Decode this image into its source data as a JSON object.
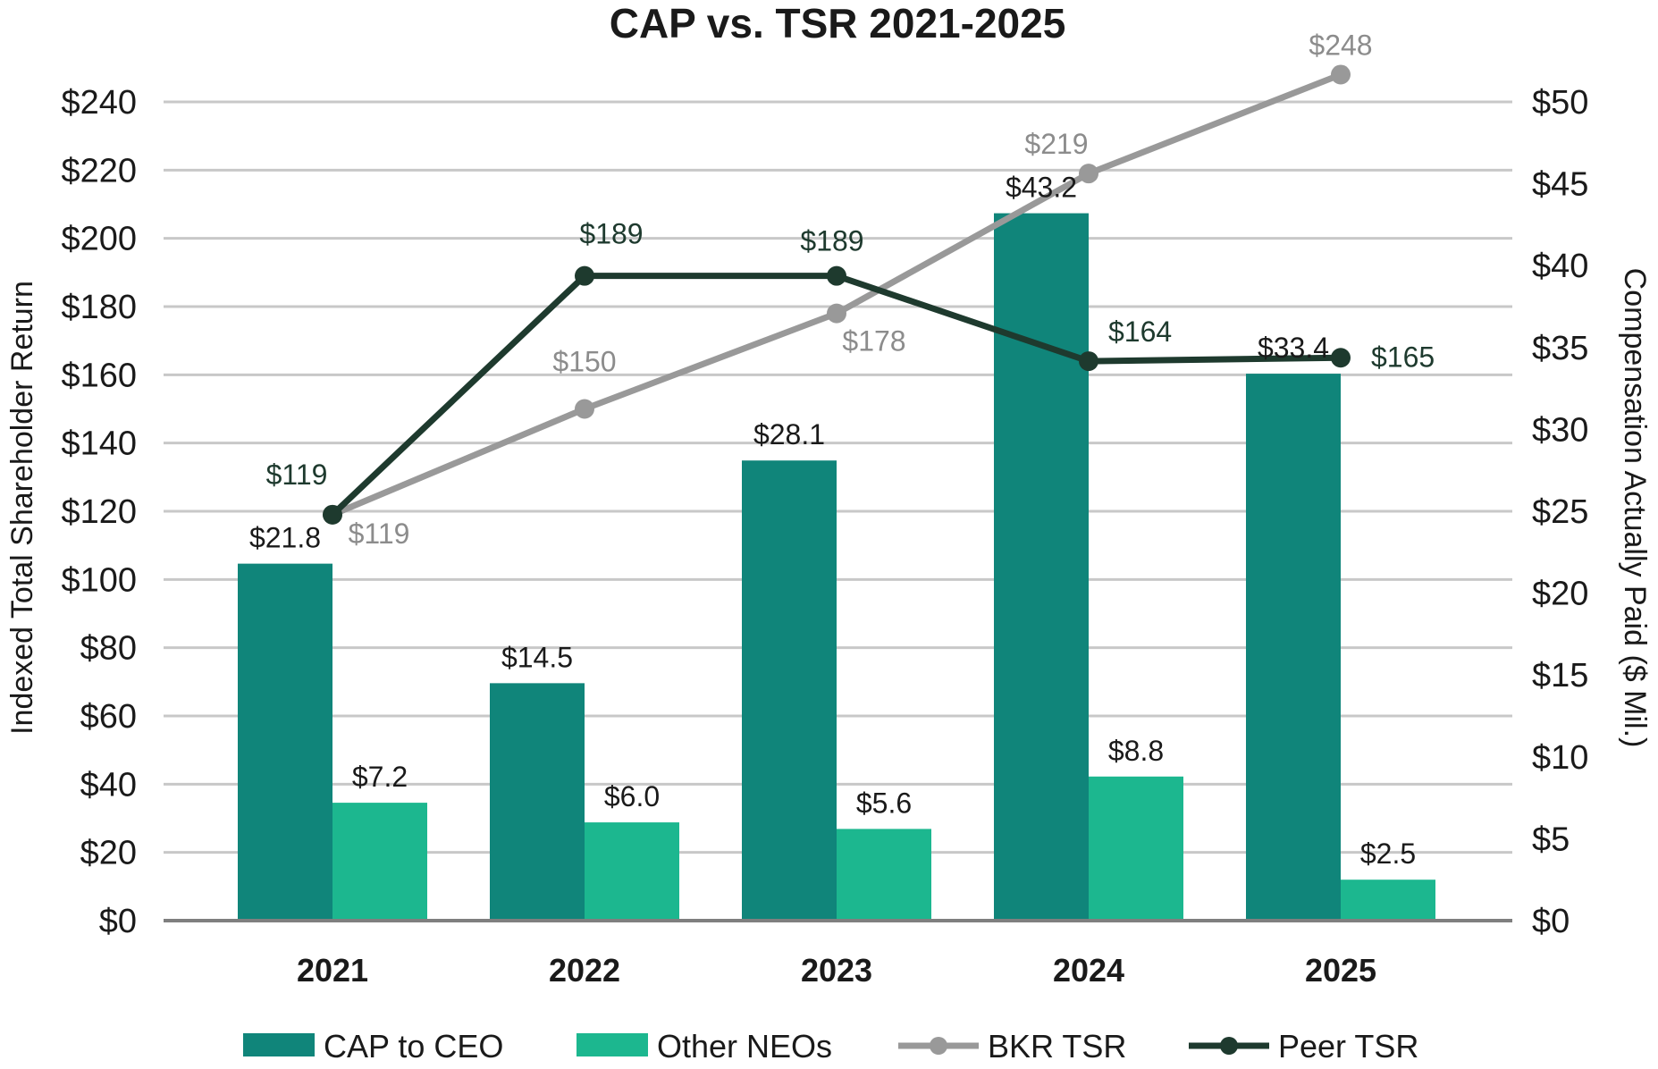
{
  "chart_data": {
    "type": "bar",
    "title": "CAP vs. TSR 2021-2025",
    "categories": [
      "2021",
      "2022",
      "2023",
      "2024",
      "2025"
    ],
    "y_left": {
      "label": "Indexed Total Shareholder Return",
      "range": [
        0,
        240
      ],
      "ticks": [
        0,
        20,
        40,
        60,
        80,
        100,
        120,
        140,
        160,
        180,
        200,
        220,
        240
      ],
      "tick_labels": [
        "$0",
        "$20",
        "$40",
        "$60",
        "$80",
        "$100",
        "$120",
        "$140",
        "$160",
        "$180",
        "$200",
        "$220",
        "$240"
      ]
    },
    "y_right": {
      "label": "Compensation Actually Paid ($ Mil.)",
      "range": [
        0,
        50
      ],
      "ticks": [
        0,
        5,
        10,
        15,
        20,
        25,
        30,
        35,
        40,
        45,
        50
      ],
      "tick_labels": [
        "$0",
        "$5",
        "$10",
        "$15",
        "$20",
        "$25",
        "$30",
        "$35",
        "$40",
        "$45",
        "$50"
      ]
    },
    "grid": true,
    "legend_position": "bottom",
    "series": [
      {
        "name": "CAP to CEO",
        "type": "bar",
        "axis": "right",
        "color": "#10857a",
        "values": [
          21.8,
          14.5,
          28.1,
          43.2,
          33.4
        ],
        "labels": [
          "$21.8",
          "$14.5",
          "$28.1",
          "$43.2",
          "$33.4"
        ]
      },
      {
        "name": "Other NEOs",
        "type": "bar",
        "axis": "right",
        "color": "#1cb78f",
        "values": [
          7.2,
          6.0,
          5.6,
          8.8,
          2.5
        ],
        "labels": [
          "$7.2",
          "$6.0",
          "$5.6",
          "$8.8",
          "$2.5"
        ]
      },
      {
        "name": "BKR TSR",
        "type": "line",
        "axis": "left",
        "color": "#999999",
        "label_color": "#8c8c8c",
        "values": [
          119,
          150,
          178,
          219,
          248
        ],
        "labels": [
          "$119",
          "$150",
          "$178",
          "$219",
          "$248"
        ]
      },
      {
        "name": "Peer TSR",
        "type": "line",
        "axis": "left",
        "color": "#1e3a2e",
        "label_color": "#1e3a2e",
        "values": [
          119,
          189,
          189,
          164,
          165
        ],
        "labels": [
          "$119",
          "$189",
          "$189",
          "$164",
          "$165"
        ]
      }
    ]
  }
}
